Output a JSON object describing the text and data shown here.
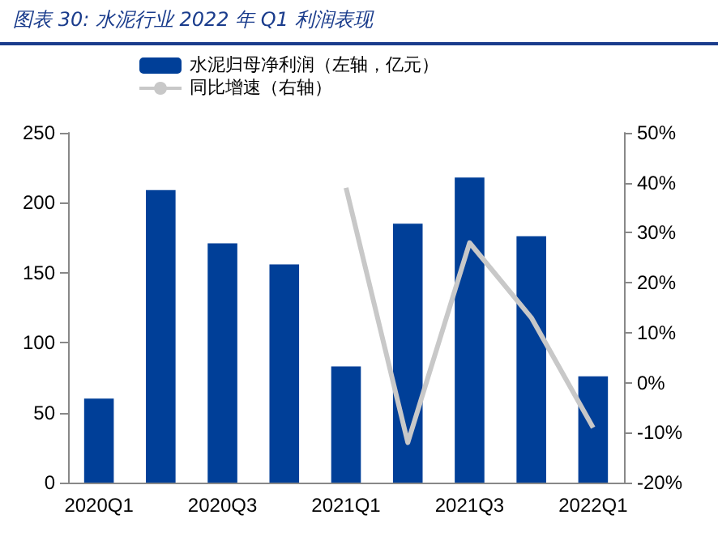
{
  "chart_data": {
    "type": "bar",
    "title": "图表 30:  水泥行业 2022 年 Q1 利润表现",
    "categories": [
      "2020Q1",
      null,
      "2020Q3",
      null,
      "2021Q1",
      null,
      "2021Q3",
      null,
      "2022Q1"
    ],
    "series": [
      {
        "name": "水泥归母净利润（左轴，亿元）",
        "color": "#003f98",
        "values": [
          60,
          209,
          171,
          156,
          83,
          185,
          218,
          176,
          76
        ]
      },
      {
        "name": "同比增速（右轴）",
        "type": "line",
        "axis": "y2",
        "color": "#c8c8c8",
        "values": [
          null,
          null,
          null,
          null,
          39,
          -12,
          28,
          13,
          -9
        ]
      }
    ],
    "ylim": [
      0,
      250
    ],
    "yticks": [
      0,
      50,
      100,
      150,
      200,
      250
    ],
    "y2lim": [
      -20,
      50
    ],
    "y2ticks": [
      {
        "value": -20,
        "label": "-20%"
      },
      {
        "value": -10,
        "label": "-10%"
      },
      {
        "value": 0,
        "label": "0%"
      },
      {
        "value": 10,
        "label": "10%"
      },
      {
        "value": 20,
        "label": "20%"
      },
      {
        "value": 30,
        "label": "30%"
      },
      {
        "value": 40,
        "label": "40%"
      },
      {
        "value": 50,
        "label": "50%"
      }
    ],
    "legend": "top",
    "grid": false,
    "marker": "none"
  }
}
